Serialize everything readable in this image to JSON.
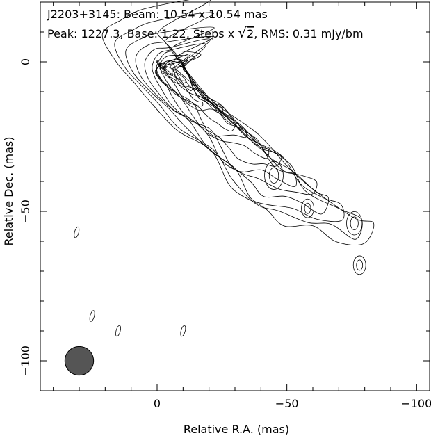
{
  "header": {
    "line1": "J2203+3145: Beam: 10.54 x 10.54 mas",
    "line2_prefix": "Peak: 1227.3, Base: 1.22, Steps x ",
    "line2_root_symbol": "√",
    "line2_root_arg": "2",
    "line2_suffix": ", RMS: 0.31 mJy/bm"
  },
  "chart_data": {
    "type": "contour",
    "source": "J2203+3145",
    "beam": {
      "major_mas": 10.54,
      "minor_mas": 10.54,
      "label": "10.54 x 10.54 mas",
      "position": "bottom-left",
      "fill": "#555555"
    },
    "peak_mJy_per_beam": 1227.3,
    "base_mJy_per_beam": 1.22,
    "contour_step_factor": "sqrt(2)",
    "rms_mJy_per_beam": 0.31,
    "xlabel": "Relative R.A. (mas)",
    "ylabel": "Relative Dec. (mas)",
    "xlim": [
      45,
      -105
    ],
    "ylim": [
      -110,
      20
    ],
    "x_ticks": [
      0,
      -50,
      -100
    ],
    "y_ticks": [
      0,
      -50,
      -100
    ],
    "x_tick_labels": [
      "0",
      "−50",
      "−100"
    ],
    "y_tick_labels": [
      "0",
      "−50",
      "−100"
    ],
    "x_axis_reversed": true,
    "core_position_mas": [
      0,
      0
    ],
    "jet": {
      "direction": "south-west",
      "ridge": [
        [
          0,
          0
        ],
        [
          -10,
          -8
        ],
        [
          -22,
          -20
        ],
        [
          -35,
          -30
        ],
        [
          -47,
          -39
        ],
        [
          -58,
          -48
        ],
        [
          -68,
          -52
        ],
        [
          -78,
          -57
        ]
      ],
      "component_knots": [
        {
          "x": -45,
          "y": -38
        },
        {
          "x": -58,
          "y": -49
        },
        {
          "x": -76,
          "y": -54
        },
        {
          "x": -78,
          "y": -68
        }
      ]
    },
    "isolated_islands": [
      {
        "x": 31,
        "y": -57
      },
      {
        "x": 25,
        "y": -85
      },
      {
        "x": 15,
        "y": -90
      },
      {
        "x": -10,
        "y": -90
      }
    ],
    "contour_count": 17,
    "grid": false
  }
}
